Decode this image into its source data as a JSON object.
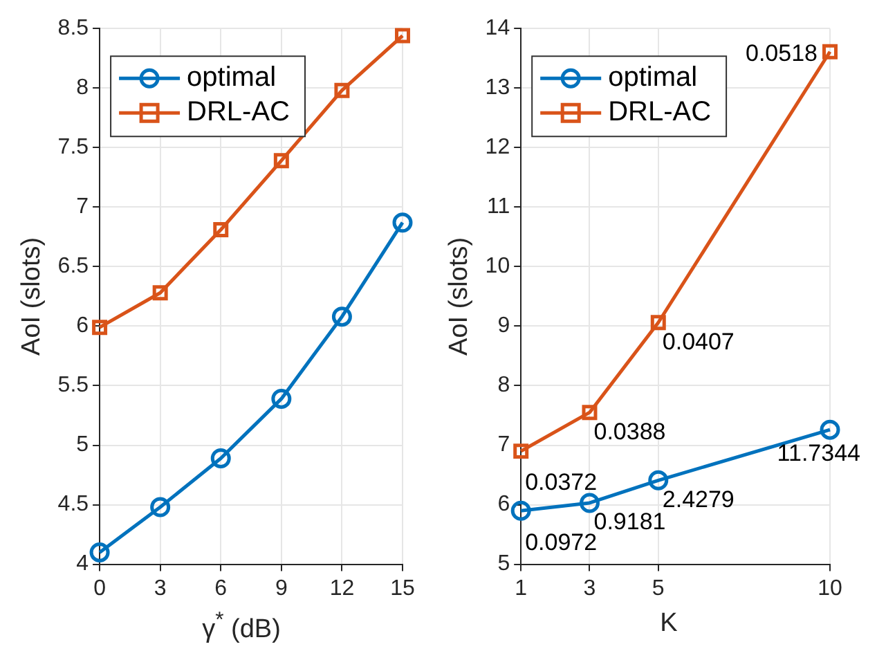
{
  "chart_data": [
    {
      "type": "line",
      "xlabel": "γ$^{*}$ (dB)",
      "ylabel": "AoI (slots)",
      "x": [
        0,
        3,
        6,
        9,
        12,
        15
      ],
      "xlim": [
        0,
        15
      ],
      "xticks": [
        0,
        3,
        6,
        9,
        12,
        15
      ],
      "ylim": [
        4,
        8.5
      ],
      "yticks": [
        4,
        4.5,
        5,
        5.5,
        6,
        6.5,
        7,
        7.5,
        8,
        8.5
      ],
      "grid": true,
      "legend": "top left",
      "line_style": "solid",
      "series": [
        {
          "name": "optimal",
          "color": "#0072bd",
          "marker": "circle",
          "values": [
            4.1,
            4.48,
            4.89,
            5.39,
            6.08,
            6.87
          ]
        },
        {
          "name": "DRL-AC",
          "color": "#d95319",
          "marker": "square",
          "values": [
            5.99,
            6.28,
            6.81,
            7.39,
            7.98,
            8.44
          ]
        }
      ]
    },
    {
      "type": "line",
      "xlabel": "K",
      "ylabel": "AoI (slots)",
      "x": [
        1,
        3,
        5,
        10
      ],
      "xlim": [
        1,
        10
      ],
      "xticks": [
        1,
        3,
        5,
        10
      ],
      "ylim": [
        5,
        14
      ],
      "yticks": [
        5,
        6,
        7,
        8,
        9,
        10,
        11,
        12,
        13,
        14
      ],
      "grid": true,
      "legend": "top left",
      "line_style": "solid",
      "series": [
        {
          "name": "optimal",
          "color": "#0072bd",
          "marker": "circle",
          "values": [
            5.9,
            6.03,
            6.41,
            7.26
          ]
        },
        {
          "name": "DRL-AC",
          "color": "#d95319",
          "marker": "square",
          "values": [
            6.9,
            7.55,
            9.06,
            13.61
          ]
        }
      ],
      "annotations": [
        {
          "text": "0.0972",
          "x": 1,
          "y": 5.9
        },
        {
          "text": "0.9181",
          "x": 3,
          "y": 6.03
        },
        {
          "text": "2.4279",
          "x": 5,
          "y": 6.41
        },
        {
          "text": "11.7344",
          "x": 10,
          "y": 7.26
        },
        {
          "text": "0.0372",
          "x": 1,
          "y": 6.9
        },
        {
          "text": "0.0388",
          "x": 3,
          "y": 7.55
        },
        {
          "text": "0.0407",
          "x": 5,
          "y": 9.06
        },
        {
          "text": "0.0518",
          "x": 10,
          "y": 13.61
        }
      ]
    }
  ]
}
